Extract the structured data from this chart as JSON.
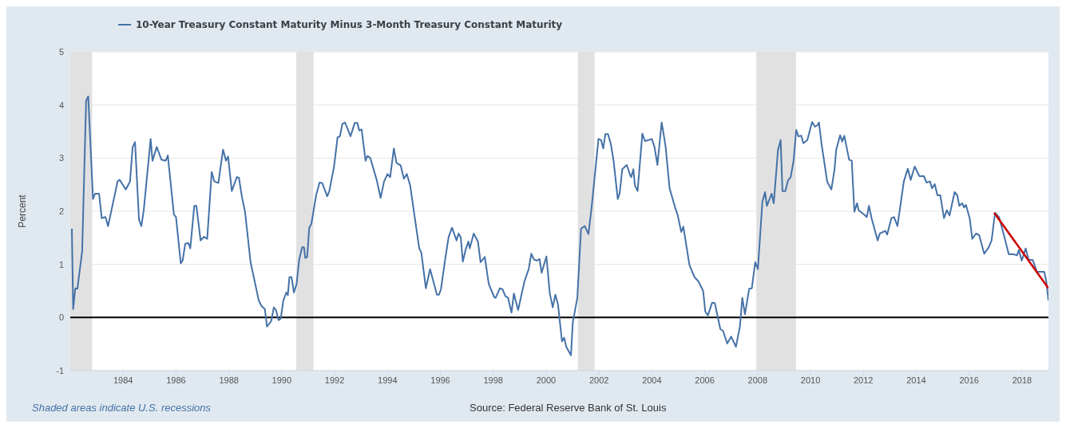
{
  "chart_data": {
    "type": "line",
    "ylabel": "Percent",
    "xlim": [
      1982,
      2019
    ],
    "xticks": [
      1984,
      1986,
      1988,
      1990,
      1992,
      1994,
      1996,
      1998,
      2000,
      2002,
      2004,
      2006,
      2008,
      2010,
      2012,
      2014,
      2016,
      2018
    ],
    "ylim": [
      -1,
      5
    ],
    "yticks": [
      -1,
      0,
      1,
      2,
      3,
      4,
      5
    ],
    "grid": "y",
    "legend": "top left",
    "series": [
      {
        "name": "10-Year Treasury Constant Maturity Minus 3-Month Treasury Constant Maturity",
        "color": "#4572a7",
        "x": [
          1982.06,
          1982.11,
          1982.19,
          1982.27,
          1982.45,
          1982.6,
          1982.68,
          1982.86,
          1982.94,
          1983.09,
          1983.19,
          1983.33,
          1983.43,
          1983.79,
          1983.87,
          1984.1,
          1984.26,
          1984.36,
          1984.45,
          1984.6,
          1984.69,
          1984.78,
          1985.04,
          1985.11,
          1985.27,
          1985.45,
          1985.61,
          1985.69,
          1985.92,
          1986.0,
          1986.18,
          1986.25,
          1986.35,
          1986.47,
          1986.54,
          1986.69,
          1986.77,
          1986.93,
          1987.06,
          1987.18,
          1987.35,
          1987.45,
          1987.6,
          1987.78,
          1987.89,
          1987.97,
          1988.11,
          1988.3,
          1988.38,
          1988.49,
          1988.61,
          1988.82,
          1989.13,
          1989.23,
          1989.36,
          1989.44,
          1989.6,
          1989.7,
          1989.78,
          1989.88,
          1989.96,
          1990.06,
          1990.17,
          1990.23,
          1990.29,
          1990.37,
          1990.46,
          1990.56,
          1990.66,
          1990.77,
          1990.84,
          1990.89,
          1990.96,
          1991.04,
          1991.12,
          1991.3,
          1991.43,
          1991.53,
          1991.72,
          1991.8,
          1991.98,
          1992.11,
          1992.2,
          1992.29,
          1992.39,
          1992.5,
          1992.6,
          1992.76,
          1992.86,
          1992.93,
          1993.02,
          1993.17,
          1993.24,
          1993.35,
          1993.59,
          1993.74,
          1993.87,
          1994.0,
          1994.1,
          1994.24,
          1994.34,
          1994.5,
          1994.62,
          1994.73,
          1994.86,
          1994.99,
          1995.2,
          1995.28,
          1995.45,
          1995.61,
          1995.87,
          1995.95,
          1996.02,
          1996.18,
          1996.31,
          1996.44,
          1996.61,
          1996.69,
          1996.77,
          1996.85,
          1996.95,
          1997.06,
          1997.11,
          1997.26,
          1997.42,
          1997.52,
          1997.68,
          1997.83,
          1998.04,
          1998.09,
          1998.25,
          1998.35,
          1998.46,
          1998.56,
          1998.69,
          1998.78,
          1998.94,
          1999.18,
          1999.34,
          1999.44,
          1999.54,
          1999.65,
          1999.75,
          1999.83,
          2000.01,
          2000.14,
          2000.25,
          2000.35,
          2000.45,
          2000.6,
          2000.68,
          2000.77,
          2000.94,
          2001.01,
          2001.18,
          2001.32,
          2001.46,
          2001.6,
          2001.72,
          2001.98,
          2002.08,
          2002.16,
          2002.24,
          2002.34,
          2002.45,
          2002.55,
          2002.71,
          2002.78,
          2002.88,
          2003.05,
          2003.17,
          2003.22,
          2003.3,
          2003.36,
          2003.46,
          2003.64,
          2003.74,
          2004.0,
          2004.1,
          2004.21,
          2004.37,
          2004.49,
          2004.52,
          2004.67,
          2004.88,
          2004.98,
          2005.11,
          2005.19,
          2005.42,
          2005.61,
          2005.76,
          2005.94,
          2006.02,
          2006.12,
          2006.28,
          2006.38,
          2006.59,
          2006.69,
          2006.85,
          2007.0,
          2007.18,
          2007.33,
          2007.42,
          2007.52,
          2007.68,
          2007.78,
          2007.91,
          2008.01,
          2008.18,
          2008.28,
          2008.35,
          2008.53,
          2008.61,
          2008.77,
          2008.87,
          2008.94,
          2009.05,
          2009.15,
          2009.25,
          2009.36,
          2009.46,
          2009.54,
          2009.65,
          2009.73,
          2009.88,
          2010.06,
          2010.17,
          2010.27,
          2010.32,
          2010.42,
          2010.63,
          2010.79,
          2010.91,
          2010.97,
          2011.12,
          2011.2,
          2011.28,
          2011.46,
          2011.56,
          2011.66,
          2011.76,
          2011.82,
          2012.02,
          2012.13,
          2012.21,
          2012.31,
          2012.54,
          2012.62,
          2012.83,
          2012.9,
          2013.06,
          2013.16,
          2013.29,
          2013.53,
          2013.68,
          2013.79,
          2013.94,
          2014.12,
          2014.29,
          2014.39,
          2014.52,
          2014.6,
          2014.7,
          2014.8,
          2014.91,
          2015.05,
          2015.16,
          2015.26,
          2015.45,
          2015.55,
          2015.63,
          2015.74,
          2015.81,
          2015.88,
          2016.02,
          2016.12,
          2016.26,
          2016.38,
          2016.57,
          2016.74,
          2016.85,
          2016.98,
          2017.13,
          2017.31,
          2017.5,
          2017.68,
          2017.81,
          2017.88,
          2017.99,
          2018.14,
          2018.25,
          2018.41,
          2018.56,
          2018.72,
          2018.84,
          2018.92,
          2019.0
        ],
        "values": [
          1.67,
          0.16,
          0.55,
          0.54,
          1.25,
          4.08,
          4.16,
          2.23,
          2.33,
          2.33,
          1.87,
          1.89,
          1.72,
          2.56,
          2.59,
          2.41,
          2.56,
          3.21,
          3.3,
          1.84,
          1.72,
          2.02,
          3.36,
          2.95,
          3.21,
          2.97,
          2.95,
          3.05,
          1.94,
          1.89,
          1.02,
          1.07,
          1.39,
          1.4,
          1.3,
          2.1,
          2.1,
          1.45,
          1.52,
          1.48,
          2.74,
          2.56,
          2.53,
          3.16,
          2.95,
          3.03,
          2.38,
          2.64,
          2.63,
          2.28,
          1.99,
          1.04,
          0.32,
          0.22,
          0.16,
          -0.17,
          -0.07,
          0.19,
          0.14,
          -0.05,
          -0.02,
          0.32,
          0.47,
          0.42,
          0.76,
          0.76,
          0.47,
          0.63,
          1.09,
          1.32,
          1.32,
          1.12,
          1.14,
          1.69,
          1.76,
          2.3,
          2.54,
          2.53,
          2.28,
          2.38,
          2.85,
          3.39,
          3.41,
          3.64,
          3.67,
          3.54,
          3.41,
          3.66,
          3.66,
          3.52,
          3.54,
          2.95,
          3.04,
          3.0,
          2.59,
          2.25,
          2.56,
          2.7,
          2.64,
          3.18,
          2.91,
          2.86,
          2.61,
          2.7,
          2.48,
          2.02,
          1.3,
          1.22,
          0.55,
          0.91,
          0.43,
          0.43,
          0.53,
          1.09,
          1.51,
          1.69,
          1.45,
          1.58,
          1.51,
          1.05,
          1.27,
          1.43,
          1.3,
          1.58,
          1.43,
          1.04,
          1.14,
          0.63,
          0.38,
          0.37,
          0.55,
          0.53,
          0.4,
          0.37,
          0.09,
          0.45,
          0.14,
          0.68,
          0.91,
          1.2,
          1.09,
          1.07,
          1.1,
          0.84,
          1.15,
          0.45,
          0.19,
          0.43,
          0.24,
          -0.45,
          -0.38,
          -0.56,
          -0.71,
          -0.09,
          0.37,
          1.67,
          1.72,
          1.57,
          2.07,
          3.36,
          3.34,
          3.18,
          3.45,
          3.45,
          3.26,
          2.95,
          2.23,
          2.33,
          2.79,
          2.87,
          2.69,
          2.64,
          2.79,
          2.48,
          2.38,
          3.46,
          3.32,
          3.36,
          3.21,
          2.87,
          3.67,
          3.31,
          3.21,
          2.43,
          2.07,
          1.92,
          1.61,
          1.71,
          0.99,
          0.76,
          0.68,
          0.5,
          0.11,
          0.04,
          0.28,
          0.27,
          -0.22,
          -0.25,
          -0.49,
          -0.36,
          -0.55,
          -0.17,
          0.37,
          0.06,
          0.54,
          0.55,
          1.04,
          0.91,
          2.18,
          2.36,
          2.1,
          2.33,
          2.15,
          3.15,
          3.34,
          2.38,
          2.38,
          2.58,
          2.64,
          2.95,
          3.53,
          3.41,
          3.42,
          3.28,
          3.34,
          3.68,
          3.59,
          3.62,
          3.67,
          3.26,
          2.56,
          2.41,
          2.79,
          3.15,
          3.43,
          3.31,
          3.42,
          2.97,
          2.95,
          1.99,
          2.15,
          2.02,
          1.94,
          1.89,
          2.1,
          1.87,
          1.45,
          1.58,
          1.63,
          1.56,
          1.87,
          1.89,
          1.72,
          2.56,
          2.8,
          2.59,
          2.84,
          2.66,
          2.66,
          2.54,
          2.56,
          2.43,
          2.51,
          2.3,
          2.3,
          1.87,
          2.02,
          1.92,
          2.36,
          2.3,
          2.1,
          2.15,
          2.07,
          2.12,
          1.87,
          1.48,
          1.58,
          1.55,
          1.2,
          1.32,
          1.45,
          1.97,
          1.89,
          1.56,
          1.19,
          1.19,
          1.17,
          1.27,
          1.07,
          1.3,
          1.09,
          1.08,
          0.86,
          0.86,
          0.86,
          0.68,
          0.32
        ]
      },
      {
        "color": "#cc0000",
        "x": [
          2016.95,
          2019.0
        ],
        "values": [
          1.97,
          0.55
        ]
      }
    ],
    "ref_lines": [
      {
        "axis": "y",
        "value": 0,
        "color": "#000000"
      }
    ],
    "bands": [
      {
        "axis": "x",
        "from": 1982,
        "to": 1982.83,
        "color": "#e1e1e1"
      },
      {
        "axis": "x",
        "from": 1990.55,
        "to": 1991.2,
        "color": "#e1e1e1"
      },
      {
        "axis": "x",
        "from": 2001.2,
        "to": 2001.83,
        "color": "#e1e1e1"
      },
      {
        "axis": "x",
        "from": 2007.95,
        "to": 2009.45,
        "color": "#e1e1e1"
      }
    ],
    "annotations": [
      "Shaded areas indicate U.S. recessions",
      "Source: Federal Reserve Bank of St. Louis"
    ]
  }
}
